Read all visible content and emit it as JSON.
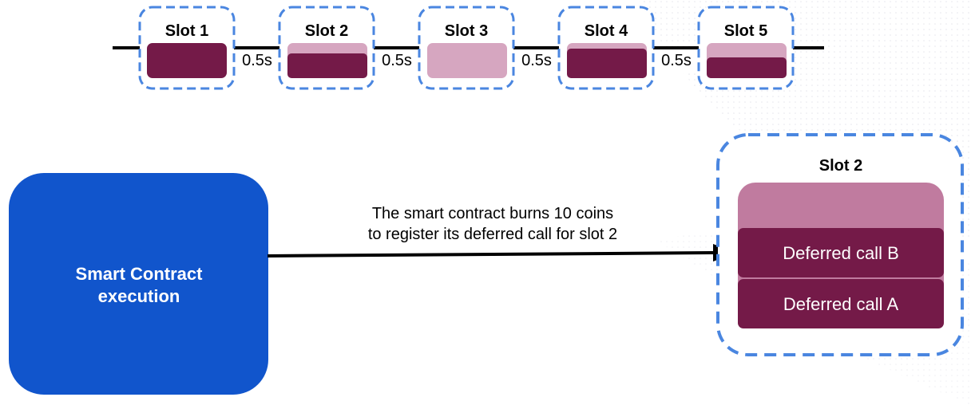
{
  "colors": {
    "dark_fill": "#741a48",
    "light_fill": "#d6a6c0",
    "medium_fill": "#c07b9f",
    "slot_border": "#4a86e0",
    "contract_fill": "#1155cc",
    "timeline": "#000000",
    "text_on_dark": "#ffffff"
  },
  "timeline": {
    "slots": [
      {
        "label": "Slot 1",
        "fill_levels": [
          "full"
        ]
      },
      {
        "label": "Slot 2",
        "fill_levels": [
          "light-top",
          "dark-bottom"
        ]
      },
      {
        "label": "Slot 3",
        "fill_levels": [
          "light"
        ]
      },
      {
        "label": "Slot 4",
        "fill_levels": [
          "light-top",
          "dark-bottom"
        ]
      },
      {
        "label": "Slot 5",
        "fill_levels": [
          "light-top",
          "dark-bottom"
        ]
      }
    ],
    "intervals": [
      "0.5s",
      "0.5s",
      "0.5s",
      "0.5s"
    ]
  },
  "contract": {
    "line1": "Smart Contract",
    "line2": "execution"
  },
  "arrow": {
    "line1": "The smart contract burns 10 coins",
    "line2": "to register its deferred call for slot 2"
  },
  "detail_slot": {
    "title": "Slot 2",
    "calls": [
      "Deferred call B",
      "Deferred call A"
    ]
  }
}
